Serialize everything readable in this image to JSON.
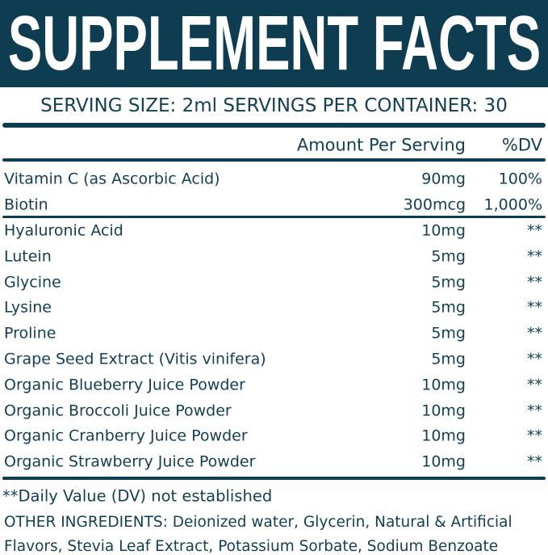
{
  "header": {
    "title": "SUPPLEMENT FACTS",
    "serving": "SERVING SIZE: 2ml SERVINGS PER CONTAINER: 30"
  },
  "table": {
    "columns": [
      "Amount Per Serving",
      "%DV"
    ],
    "sections": [
      [
        [
          "Vitamin C (as Ascorbic Acid)",
          "90mg",
          "100%"
        ],
        [
          "Biotin",
          "300mcg",
          "1,000%"
        ]
      ],
      [
        [
          "Hyaluronic Acid",
          "10mg",
          "**"
        ],
        [
          "Lutein",
          "5mg",
          "**"
        ],
        [
          "Glycine",
          "5mg",
          "**"
        ],
        [
          "Lysine",
          "5mg",
          "**"
        ],
        [
          "Proline",
          "5mg",
          "**"
        ],
        [
          "Grape Seed Extract (Vitis vinifera)",
          "5mg",
          "**"
        ],
        [
          "Organic Blueberry Juice Powder",
          "10mg",
          "**"
        ],
        [
          "Organic Broccoli Juice Powder",
          "10mg",
          "**"
        ],
        [
          "Organic Cranberry Juice Powder",
          "10mg",
          "**"
        ],
        [
          "Organic Strawberry Juice Powder",
          "10mg",
          "**"
        ]
      ]
    ]
  },
  "footnote": "**Daily Value (DV) not established",
  "other_ingredients": [
    "OTHER INGREDIENTS: Deionized water, Glycerin, Natural & Artificial",
    "Flavors, Stevia Leaf Extract, Potassium Sorbate, Sodium Benzoate"
  ]
}
